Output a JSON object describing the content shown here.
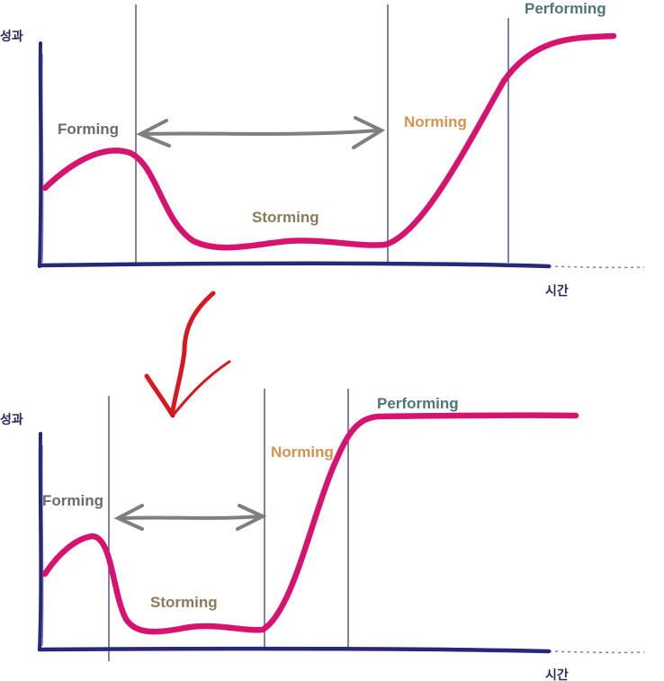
{
  "colors": {
    "axis": "#27287a",
    "divider": "#2f3166",
    "curve": "#d6136f",
    "arrow_gray": "#7f7f7f",
    "down_arrow": "#d51920",
    "forming": "#6b6b6b",
    "storming": "#8a7a5c",
    "norming": "#d39350",
    "performing": "#4f7579",
    "axis_text": "#2a2a5a"
  },
  "top_chart": {
    "y_axis_label": "성과",
    "x_axis_label": "시간",
    "stages": {
      "forming": "Forming",
      "storming": "Storming",
      "norming": "Norming",
      "performing": "Performing"
    }
  },
  "bottom_chart": {
    "y_axis_label": "성과",
    "x_axis_label": "시간",
    "stages": {
      "forming": "Forming",
      "storming": "Storming",
      "norming": "Norming",
      "performing": "Performing"
    }
  },
  "transition_icon": "down-arrow-icon",
  "range_icon": "double-arrow-icon"
}
